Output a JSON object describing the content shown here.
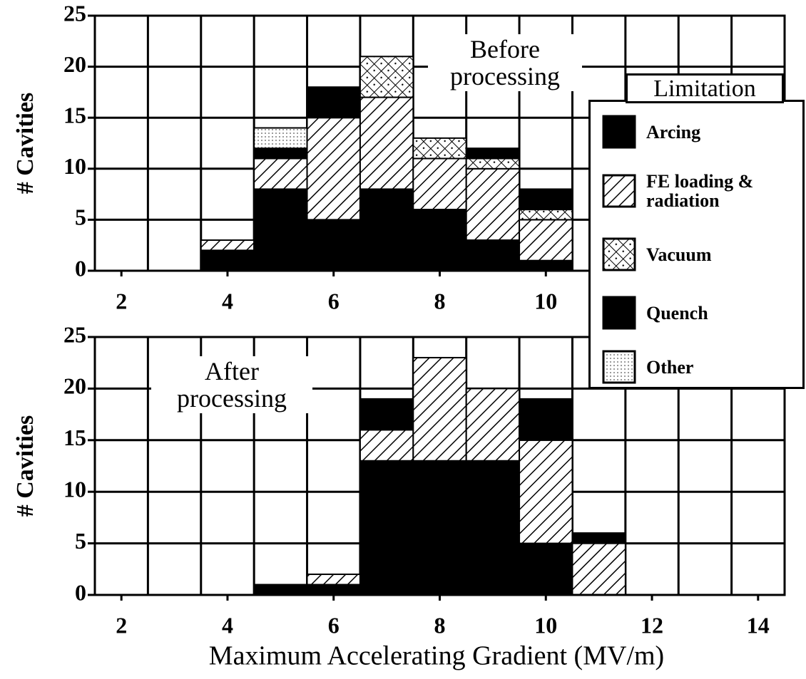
{
  "charts_legend_title": "Limitation",
  "chart_data": [
    {
      "type": "stacked_histogram",
      "annotation": "Before processing",
      "ylabel": "# Cavities",
      "x": [
        4,
        5,
        6,
        7,
        8,
        9,
        10
      ],
      "xlim": [
        1.5,
        14.5
      ],
      "xticks": [
        2,
        4,
        6,
        8,
        10,
        12,
        14
      ],
      "ylim": [
        0,
        25
      ],
      "yticks": [
        0,
        5,
        10,
        15,
        20,
        25
      ],
      "grid": true,
      "series": [
        {
          "name": "Arcing",
          "pattern": "solid",
          "values": [
            0,
            1,
            3,
            0,
            0,
            1,
            2
          ]
        },
        {
          "name": "FE loading & radiation",
          "pattern": "hatch",
          "values": [
            1,
            3,
            10,
            9,
            5,
            7,
            4
          ]
        },
        {
          "name": "Vacuum",
          "pattern": "cross",
          "values": [
            0,
            0,
            0,
            4,
            2,
            1,
            1
          ]
        },
        {
          "name": "Quench",
          "pattern": "solid",
          "values": [
            2,
            8,
            5,
            8,
            6,
            3,
            1
          ]
        },
        {
          "name": "Other",
          "pattern": "dots",
          "values": [
            0,
            2,
            0,
            0,
            0,
            0,
            0
          ]
        }
      ]
    },
    {
      "type": "stacked_histogram",
      "annotation": "After processing",
      "ylabel": "# Cavities",
      "xlabel": "Maximum Accelerating Gradient (MV/m)",
      "x": [
        5,
        6,
        7,
        8,
        9,
        10,
        11
      ],
      "xlim": [
        1.5,
        14.5
      ],
      "xticks": [
        2,
        4,
        6,
        8,
        10,
        12,
        14
      ],
      "ylim": [
        0,
        25
      ],
      "yticks": [
        0,
        5,
        10,
        15,
        20,
        25
      ],
      "grid": true,
      "series": [
        {
          "pattern": "solid",
          "values": [
            0,
            0,
            3,
            0,
            0,
            4,
            1
          ]
        },
        {
          "pattern": "hatch",
          "values": [
            0,
            1,
            3,
            10,
            7,
            10,
            5
          ]
        },
        {
          "pattern": "cross",
          "values": [
            0,
            0,
            0,
            0,
            0,
            0,
            0
          ]
        },
        {
          "pattern": "solid",
          "values": [
            1,
            1,
            13,
            13,
            13,
            5,
            0
          ]
        },
        {
          "pattern": "dots",
          "values": [
            0,
            0,
            0,
            0,
            0,
            0,
            0
          ]
        }
      ]
    }
  ]
}
